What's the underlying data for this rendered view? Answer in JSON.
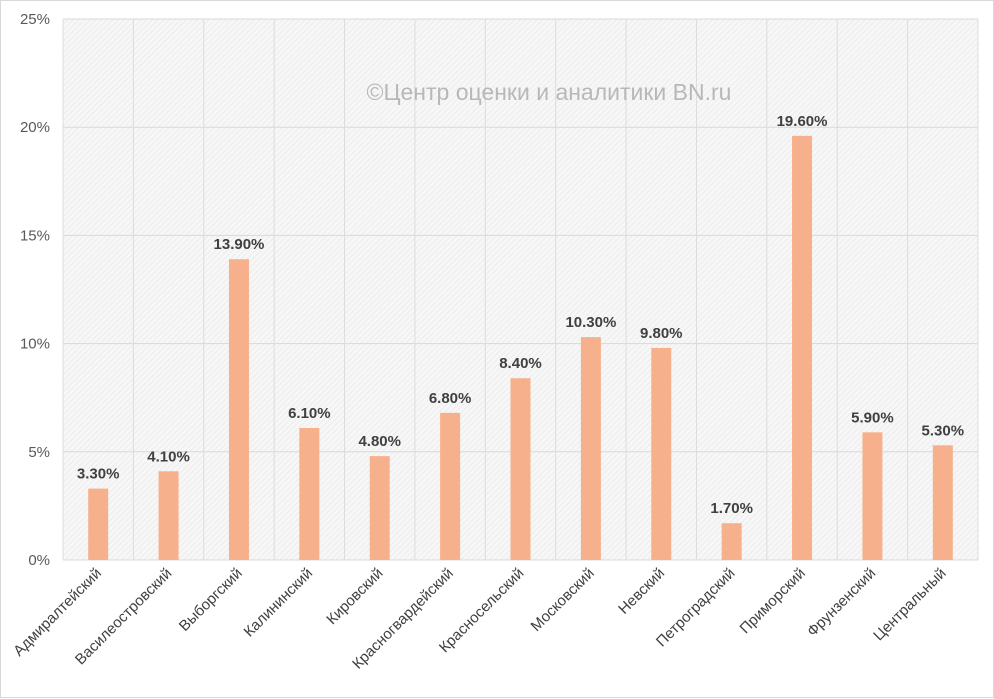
{
  "chart_data": {
    "type": "bar",
    "title": "",
    "xlabel": "",
    "ylabel": "",
    "watermark": "©Центр оценки и аналитики BN.ru",
    "categories": [
      "Адмиралтейский",
      "Василеостровский",
      "Выборгский",
      "Калининский",
      "Кировский",
      "Красногвардейский",
      "Красносельский",
      "Московский",
      "Невский",
      "Петроградский",
      "Приморский",
      "Фрунзенский",
      "Центральный"
    ],
    "values": [
      3.3,
      4.1,
      13.9,
      6.1,
      4.8,
      6.8,
      8.4,
      10.3,
      9.8,
      1.7,
      19.6,
      5.9,
      5.3
    ],
    "value_labels": [
      "3.30%",
      "4.10%",
      "13.90%",
      "6.10%",
      "4.80%",
      "6.80%",
      "8.40%",
      "10.30%",
      "9.80%",
      "1.70%",
      "19.60%",
      "5.90%",
      "5.30%"
    ],
    "ylim": [
      0,
      25
    ],
    "yticks": [
      0,
      5,
      10,
      15,
      20,
      25
    ],
    "ytick_labels": [
      "0%",
      "5%",
      "10%",
      "15%",
      "20%",
      "25%"
    ],
    "bar_color": "#f7b08c",
    "grid": true,
    "legend": "none"
  }
}
